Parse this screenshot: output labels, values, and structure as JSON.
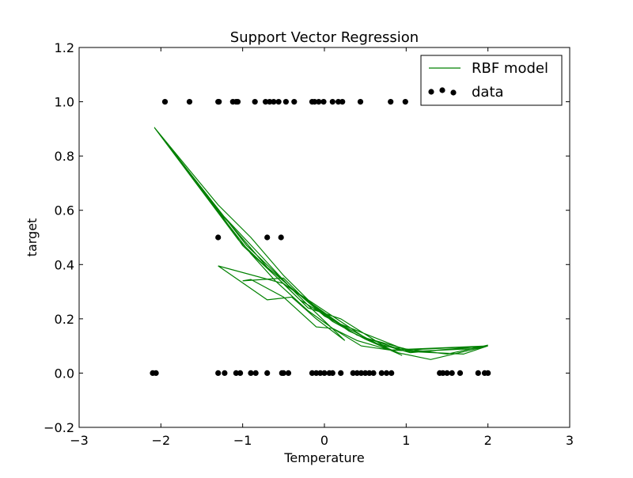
{
  "chart_data": {
    "type": "scatter",
    "title": "Support Vector Regression",
    "xlabel": "Temperature",
    "ylabel": "target",
    "xlim": [
      -3,
      3
    ],
    "ylim": [
      -0.2,
      1.2
    ],
    "xticks": [
      -3,
      -2,
      -1,
      0,
      1,
      2,
      3
    ],
    "yticks": [
      -0.2,
      0.0,
      0.2,
      0.4,
      0.6,
      0.8,
      1.0,
      1.2
    ],
    "xtick_labels": [
      "−3",
      "−2",
      "−1",
      "0",
      "1",
      "2",
      "3"
    ],
    "ytick_labels": [
      "−0.2",
      "0.0",
      "0.2",
      "0.4",
      "0.6",
      "0.8",
      "1.0",
      "1.2"
    ],
    "legend_position": "top-right",
    "grid": false,
    "series": [
      {
        "name": "RBF model",
        "type": "line",
        "color": "#008000",
        "points": [
          [
            -2.08,
            0.905
          ],
          [
            -1.3,
            0.595
          ],
          [
            -0.9,
            0.44
          ],
          [
            -0.6,
            0.34
          ],
          [
            -0.2,
            0.23
          ],
          [
            0.1,
            0.165
          ],
          [
            0.4,
            0.12
          ],
          [
            0.8,
            0.085
          ],
          [
            1.2,
            0.08
          ],
          [
            1.6,
            0.09
          ],
          [
            2.0,
            0.1
          ],
          [
            1.3,
            0.05
          ],
          [
            0.9,
            0.075
          ],
          [
            0.3,
            0.155
          ],
          [
            -0.1,
            0.24
          ],
          [
            -0.5,
            0.36
          ],
          [
            -0.9,
            0.5
          ],
          [
            -1.3,
            0.62
          ],
          [
            -2.08,
            0.905
          ],
          [
            -1.05,
            0.49
          ],
          [
            -0.3,
            0.27
          ],
          [
            0.4,
            0.14
          ],
          [
            1.0,
            0.08
          ],
          [
            1.7,
            0.07
          ],
          [
            2.0,
            0.1
          ],
          [
            1.0,
            0.085
          ],
          [
            0.2,
            0.18
          ],
          [
            -0.5,
            0.33
          ],
          [
            -1.0,
            0.47
          ],
          [
            -1.3,
            0.6
          ],
          [
            -0.8,
            0.44
          ],
          [
            -0.4,
            0.31
          ],
          [
            0.0,
            0.23
          ],
          [
            0.5,
            0.13
          ],
          [
            1.1,
            0.08
          ],
          [
            1.8,
            0.09
          ],
          [
            2.0,
            0.103
          ],
          [
            1.5,
            0.07
          ],
          [
            0.7,
            0.1
          ],
          [
            0.0,
            0.21
          ],
          [
            -0.7,
            0.39
          ],
          [
            -1.3,
            0.6
          ],
          [
            -2.08,
            0.905
          ],
          [
            -0.95,
            0.47
          ],
          [
            -0.6,
            0.37
          ],
          [
            -0.2,
            0.25
          ],
          [
            0.25,
            0.12
          ],
          [
            -0.1,
            0.2
          ],
          [
            -0.4,
            0.28
          ],
          [
            -0.7,
            0.27
          ],
          [
            -1.3,
            0.395
          ],
          [
            -0.5,
            0.33
          ],
          [
            -0.2,
            0.24
          ],
          [
            0.2,
            0.2
          ],
          [
            0.7,
            0.105
          ],
          [
            1.05,
            0.075
          ],
          [
            2.0,
            0.1
          ],
          [
            0.8,
            0.085
          ],
          [
            0.45,
            0.1
          ],
          [
            0.1,
            0.165
          ],
          [
            -0.1,
            0.17
          ],
          [
            -0.5,
            0.28
          ],
          [
            -0.9,
            0.345
          ],
          [
            -1.0,
            0.34
          ],
          [
            -0.5,
            0.35
          ],
          [
            -0.3,
            0.29
          ],
          [
            0.1,
            0.19
          ],
          [
            0.5,
            0.125
          ],
          [
            0.95,
            0.065
          ]
        ]
      },
      {
        "name": "data",
        "type": "scatter",
        "color": "#000000",
        "points": [
          [
            -1.95,
            1.0
          ],
          [
            -1.65,
            1.0
          ],
          [
            -1.3,
            1.0
          ],
          [
            -1.29,
            1.0
          ],
          [
            -1.12,
            1.0
          ],
          [
            -1.08,
            1.0
          ],
          [
            -1.06,
            1.0
          ],
          [
            -0.85,
            1.0
          ],
          [
            -0.72,
            1.0
          ],
          [
            -0.67,
            1.0
          ],
          [
            -0.62,
            1.0
          ],
          [
            -0.56,
            1.0
          ],
          [
            -0.47,
            1.0
          ],
          [
            -0.37,
            1.0
          ],
          [
            -0.15,
            1.0
          ],
          [
            -0.12,
            1.0
          ],
          [
            -0.07,
            1.0
          ],
          [
            -0.01,
            1.0
          ],
          [
            0.1,
            1.0
          ],
          [
            0.17,
            1.0
          ],
          [
            0.22,
            1.0
          ],
          [
            0.44,
            1.0
          ],
          [
            0.81,
            1.0
          ],
          [
            0.99,
            1.0
          ],
          [
            -1.3,
            0.5
          ],
          [
            -0.7,
            0.5
          ],
          [
            -0.53,
            0.5
          ],
          [
            -2.1,
            0.0
          ],
          [
            -2.06,
            0.0
          ],
          [
            -1.3,
            0.0
          ],
          [
            -1.22,
            0.0
          ],
          [
            -1.08,
            0.0
          ],
          [
            -1.03,
            0.0
          ],
          [
            -0.9,
            0.0
          ],
          [
            -0.84,
            0.0
          ],
          [
            -0.7,
            0.0
          ],
          [
            -0.52,
            0.0
          ],
          [
            -0.5,
            0.0
          ],
          [
            -0.44,
            0.0
          ],
          [
            -0.15,
            0.0
          ],
          [
            -0.1,
            0.0
          ],
          [
            -0.05,
            0.0
          ],
          [
            0.0,
            0.0
          ],
          [
            0.06,
            0.0
          ],
          [
            0.1,
            0.0
          ],
          [
            0.2,
            0.0
          ],
          [
            0.35,
            0.0
          ],
          [
            0.4,
            0.0
          ],
          [
            0.45,
            0.0
          ],
          [
            0.5,
            0.0
          ],
          [
            0.55,
            0.0
          ],
          [
            0.6,
            0.0
          ],
          [
            0.7,
            0.0
          ],
          [
            0.76,
            0.0
          ],
          [
            0.82,
            0.0
          ],
          [
            1.41,
            0.0
          ],
          [
            1.45,
            0.0
          ],
          [
            1.5,
            0.0
          ],
          [
            1.56,
            0.0
          ],
          [
            1.66,
            0.0
          ],
          [
            1.88,
            0.0
          ],
          [
            1.96,
            0.0
          ],
          [
            2.0,
            0.0
          ]
        ]
      }
    ]
  }
}
